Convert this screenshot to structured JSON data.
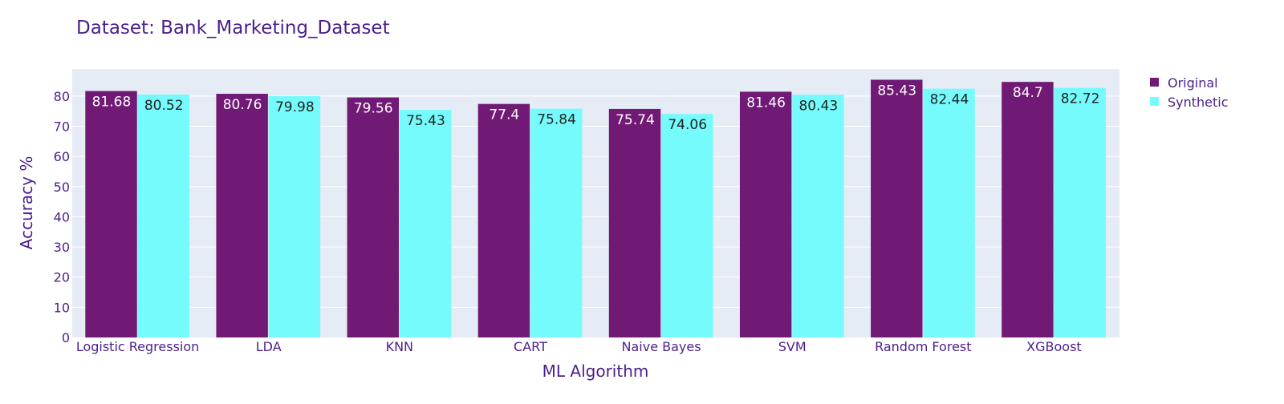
{
  "chart_data": {
    "type": "bar",
    "title": "Dataset: Bank_Marketing_Dataset",
    "xlabel": "ML Algorithm",
    "ylabel": "Accuracy %",
    "categories": [
      "Logistic Regression",
      "LDA",
      "KNN",
      "CART",
      "Naive Bayes",
      "SVM",
      "Random Forest",
      "XGBoost"
    ],
    "series": [
      {
        "name": "Original",
        "values": [
          81.68,
          80.76,
          79.56,
          77.4,
          75.74,
          81.46,
          85.43,
          84.7
        ],
        "color": "#701a75"
      },
      {
        "name": "Synthetic",
        "values": [
          80.52,
          79.98,
          75.43,
          75.84,
          74.06,
          80.43,
          82.44,
          82.72
        ],
        "color": "#75fbfb"
      }
    ],
    "ylim": [
      0,
      89
    ],
    "yticks": [
      0,
      10,
      20,
      30,
      40,
      50,
      60,
      70,
      80
    ],
    "grid": true,
    "legend_position": "top-right",
    "colors": {
      "plot_background": "#e5ecf6",
      "grid": "#ffffff",
      "text": "#4b1f8c",
      "label_on_original": "#ffffff",
      "label_on_synthetic": "#222222"
    }
  }
}
